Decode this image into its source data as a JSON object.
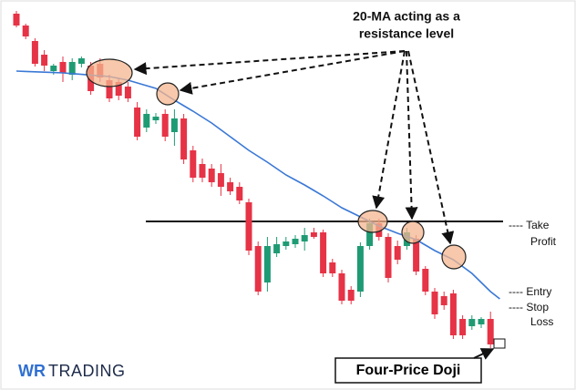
{
  "chart_data": {
    "type": "candlestick",
    "open": [
      385,
      372,
      355,
      340,
      322,
      332,
      318,
      330,
      328,
      330,
      312,
      310,
      305,
      282,
      260,
      268,
      275,
      255,
      270,
      235,
      220,
      215,
      210,
      200,
      195,
      178,
      130,
      90,
      122,
      130,
      132,
      135,
      145,
      145,
      112,
      100,
      82,
      80,
      130,
      155,
      140,
      130,
      130,
      138,
      105,
      80,
      75,
      78,
      50,
      42,
      44,
      50,
      24
    ],
    "high": [
      388,
      374,
      358,
      345,
      330,
      338,
      336,
      338,
      332,
      336,
      318,
      314,
      310,
      288,
      280,
      276,
      280,
      280,
      275,
      240,
      226,
      220,
      220,
      205,
      200,
      182,
      135,
      140,
      140,
      140,
      142,
      150,
      150,
      148,
      116,
      104,
      86,
      134,
      160,
      160,
      144,
      136,
      150,
      142,
      108,
      84,
      80,
      82,
      54,
      54,
      52,
      58,
      24
    ],
    "low": [
      370,
      357,
      327,
      322,
      318,
      310,
      312,
      326,
      296,
      310,
      288,
      290,
      288,
      246,
      255,
      264,
      245,
      240,
      220,
      200,
      200,
      195,
      185,
      186,
      176,
      120,
      76,
      80,
      118,
      126,
      128,
      125,
      138,
      96,
      96,
      66,
      66,
      74,
      126,
      136,
      90,
      110,
      126,
      98,
      76,
      50,
      60,
      28,
      28,
      38,
      40,
      18,
      24
    ],
    "close": [
      372,
      360,
      330,
      328,
      328,
      320,
      332,
      336,
      300,
      315,
      292,
      295,
      292,
      250,
      275,
      272,
      250,
      270,
      225,
      205,
      205,
      200,
      195,
      190,
      180,
      125,
      80,
      130,
      132,
      135,
      138,
      142,
      140,
      100,
      100,
      70,
      70,
      130,
      155,
      140,
      95,
      115,
      145,
      102,
      80,
      55,
      65,
      32,
      32,
      50,
      50,
      22,
      24
    ],
    "up_color": "#1f9b74",
    "down_color": "#e63346",
    "ma": [
      322,
      321.6,
      321.2,
      320.8,
      320.4,
      320,
      319.2,
      318.4,
      317.6,
      316.8,
      316,
      314,
      312,
      309,
      306,
      303,
      296.5,
      290,
      284,
      278,
      271.5,
      265,
      257.5,
      250,
      242.5,
      235,
      228.5,
      222,
      215,
      208,
      202.5,
      197,
      191,
      185,
      178.5,
      172,
      167,
      162,
      157,
      152,
      148,
      144,
      140.5,
      137,
      131,
      125,
      120,
      115,
      107.5,
      100,
      90,
      80,
      72
    ],
    "ma_color": "#3a78d6",
    "ylim": [
      0,
      400
    ],
    "take_profit_level": 157,
    "annotation": [
      "20-MA acting as a",
      "resistance level"
    ],
    "take_profit_label": [
      "---- Take",
      "Profit"
    ],
    "entry_label": "---- Entry",
    "stop_loss_label": [
      "---- Stop",
      "Loss"
    ],
    "doji_label": "Four-Price Doji",
    "logo": [
      "WR",
      "TRADING"
    ]
  }
}
